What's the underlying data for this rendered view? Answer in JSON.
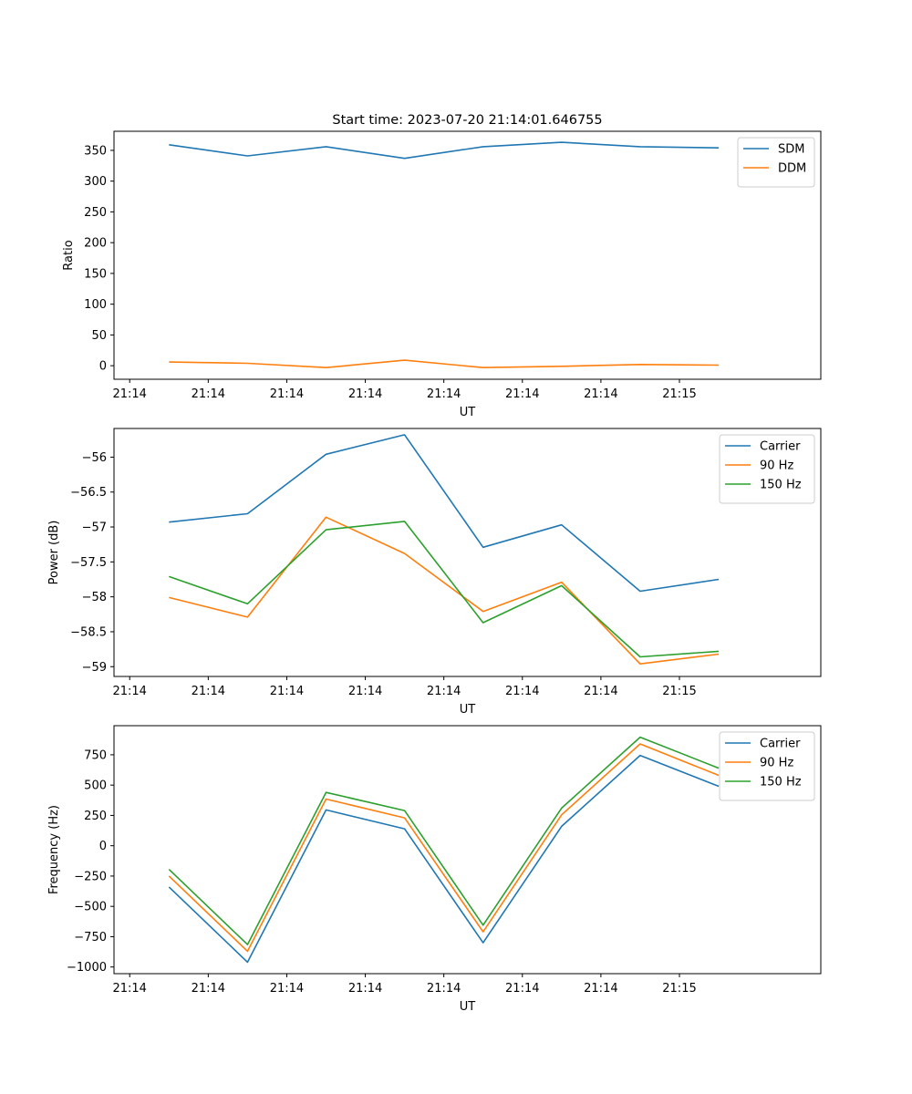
{
  "title": "Start time: 2023-07-20 21:14:01.646755",
  "chart_data": [
    {
      "type": "line",
      "title": "Start time: 2023-07-20 21:14:01.646755",
      "xlabel": "UT",
      "ylabel": "Ratio",
      "x_ticks": [
        "21:14",
        "21:14",
        "21:14",
        "21:14",
        "21:14",
        "21:14",
        "21:14"
      ],
      "x": [
        0.5,
        1.5,
        2.5,
        3.5,
        4.5,
        5.5,
        6.5,
        7.5
      ],
      "xlim": [
        -0.2,
        8.8
      ],
      "ylim": [
        -22,
        381
      ],
      "y_ticks": [
        0,
        50,
        100,
        150,
        200,
        250,
        300,
        350
      ],
      "legend_position": "top-right",
      "series": [
        {
          "name": "SDM",
          "color": "#1f77b4",
          "values": [
            359,
            341,
            356,
            337,
            356,
            363,
            356,
            354
          ]
        },
        {
          "name": "DDM",
          "color": "#ff7f0e",
          "values": [
            6,
            4,
            -3,
            9,
            -3,
            -1,
            2,
            1
          ]
        }
      ]
    },
    {
      "type": "line",
      "xlabel": "UT",
      "ylabel": "Power (dB)",
      "x_ticks": [
        "21:14",
        "21:14",
        "21:14",
        "21:14",
        "21:14",
        "21:14",
        "21:14"
      ],
      "x": [
        0.5,
        1.5,
        2.5,
        3.5,
        4.5,
        5.5,
        6.5,
        7.5
      ],
      "xlim": [
        -0.2,
        8.8
      ],
      "ylim": [
        -59.14,
        -55.59
      ],
      "y_ticks": [
        -59.0,
        -58.5,
        -58.0,
        -57.5,
        -57.0,
        -56.5,
        -56.0
      ],
      "legend_position": "top-right",
      "series": [
        {
          "name": "Carrier",
          "color": "#1f77b4",
          "values": [
            -56.93,
            -56.81,
            -55.96,
            -55.68,
            -57.29,
            -56.97,
            -57.92,
            -57.75
          ]
        },
        {
          "name": "90 Hz",
          "color": "#ff7f0e",
          "values": [
            -58.01,
            -58.29,
            -56.86,
            -57.38,
            -58.21,
            -57.79,
            -58.96,
            -58.82
          ]
        },
        {
          "name": "150 Hz",
          "color": "#2ca02c",
          "values": [
            -57.71,
            -58.1,
            -57.04,
            -56.92,
            -58.37,
            -57.84,
            -58.86,
            -58.78
          ]
        }
      ]
    },
    {
      "type": "line",
      "xlabel": "UT",
      "ylabel": "Frequency (Hz)",
      "x_ticks": [
        "21:14",
        "21:14",
        "21:14",
        "21:14",
        "21:14",
        "21:14",
        "21:14"
      ],
      "x": [
        0.5,
        1.5,
        2.5,
        3.5,
        4.5,
        5.5,
        6.5,
        7.5
      ],
      "xlim": [
        -0.2,
        8.8
      ],
      "ylim": [
        -1055,
        990
      ],
      "y_ticks": [
        -1000,
        -750,
        -500,
        -250,
        0,
        250,
        500,
        750
      ],
      "legend_position": "top-right",
      "series": [
        {
          "name": "Carrier",
          "color": "#1f77b4",
          "values": [
            -340,
            -960,
            295,
            140,
            -800,
            160,
            745,
            490
          ]
        },
        {
          "name": "90 Hz",
          "color": "#ff7f0e",
          "values": [
            -250,
            -870,
            385,
            230,
            -710,
            255,
            840,
            580
          ]
        },
        {
          "name": "150 Hz",
          "color": "#2ca02c",
          "values": [
            -195,
            -815,
            440,
            290,
            -655,
            310,
            895,
            640
          ]
        }
      ]
    }
  ],
  "x_tick_last_label": "21:15"
}
